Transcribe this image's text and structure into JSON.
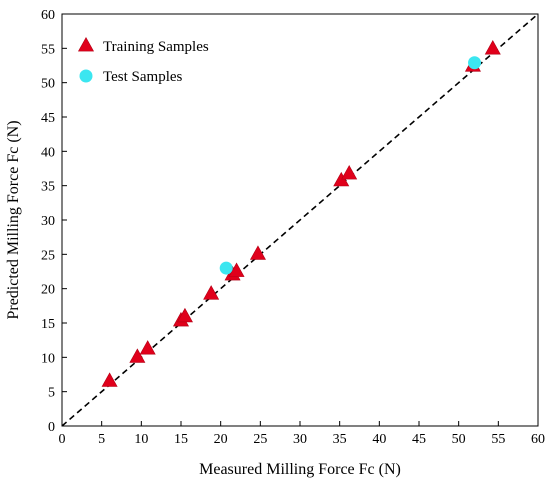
{
  "chart_data": {
    "type": "scatter",
    "title": "",
    "xlabel": "Measured Milling Force Fc (N)",
    "ylabel": "Predicted Milling Force Fc (N)",
    "xlim": [
      0,
      60
    ],
    "ylim": [
      0,
      60
    ],
    "xticks": [
      "0",
      "5",
      "10",
      "15",
      "20",
      "25",
      "30",
      "35",
      "40",
      "45",
      "50",
      "55",
      "60"
    ],
    "yticks": [
      "0",
      "5",
      "10",
      "15",
      "20",
      "25",
      "30",
      "35",
      "40",
      "45",
      "50",
      "55",
      "60"
    ],
    "grid": false,
    "legend_position": "top-left",
    "reference_line": {
      "style": "dashed",
      "color": "#000000",
      "from": [
        0,
        0
      ],
      "to": [
        60,
        60
      ]
    },
    "series": [
      {
        "name": "Training Samples",
        "marker": "triangle",
        "color": "#e0001b",
        "points": [
          [
            6.0,
            6.5
          ],
          [
            9.5,
            10.0
          ],
          [
            10.8,
            11.2
          ],
          [
            15.0,
            15.3
          ],
          [
            15.5,
            15.9
          ],
          [
            18.8,
            19.2
          ],
          [
            21.5,
            22.0
          ],
          [
            22.0,
            22.5
          ],
          [
            24.7,
            25.0
          ],
          [
            35.2,
            35.7
          ],
          [
            36.2,
            36.7
          ],
          [
            51.8,
            52.4
          ],
          [
            54.3,
            54.9
          ]
        ]
      },
      {
        "name": "Test Samples",
        "marker": "circle",
        "color": "#3be6f0",
        "points": [
          [
            20.7,
            23.0
          ],
          [
            52.0,
            52.9
          ]
        ]
      }
    ]
  }
}
